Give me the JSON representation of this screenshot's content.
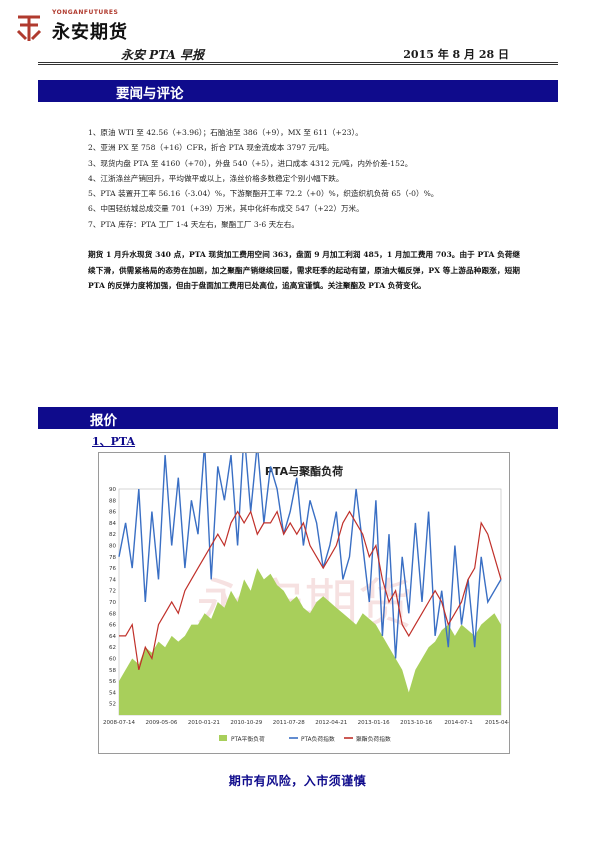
{
  "header": {
    "logo_small": "YONGANFUTURES",
    "logo_main": "永安期货",
    "title": "永安 PTA 早报",
    "date": "2015 年 8 月 28 日"
  },
  "sections": {
    "news_title": "要闻与评论",
    "quote_title": "报价",
    "sub_title": "1、PTA"
  },
  "news": [
    "1、原油 WTI 至 42.56（+3.96）；石脑油至 386（+9），MX 至 611（+23）。",
    "2、亚洲 PX 至 758（+16）CFR，折合 PTA 现金流成本 3797 元/吨。",
    "3、现货内盘 PTA 至 4160（+70），外盘 540（+5），进口成本 4312 元/吨，内外价差-152。",
    "4、江浙涤丝产销回升，平均做平或以上，涤丝价格多数稳定个别小幅下跌。",
    "5、PTA 装置开工率 56.16（-3.04）%，下游聚酯开工率 72.2（+0）%，织造织机负荷 65（-0）%。",
    "6、中国轻纺城总成交量 701（+39）万米，其中化纤布成交 547（+22）万米。",
    "7、PTA 库存：PTA 工厂 1-4 天左右，聚酯工厂 3-6 天左右。"
  ],
  "comment": "期货 1 月升水现货 340 点，PTA 现货加工费用空间 363，盘面 9 月加工利润 485，1 月加工费用 703。由于 PTA 负荷继续下滑，供需紧格局的态势在加剧，加之聚酯产销继续回暖，需求旺季的起动有望，原油大幅反弹，PX 等上游品种跟涨，短期 PTA 的反弹力度将加强，但由于盘面加工费用已处高位，追高宜谨慎。关注聚酯及 PTA 负荷变化。",
  "footer": "期市有风险，入市须谨慎",
  "colors": {
    "brand_blue": "#0f0b8c",
    "series_pta": "#3a6fc4",
    "series_polyester": "#c0302a",
    "area_fill": "#a8cf5b"
  },
  "chart_data": {
    "type": "line",
    "title": "PTA与聚酯负荷",
    "ylim": [
      50,
      90
    ],
    "y_ticks": [
      "90",
      "88",
      "86",
      "84",
      "82",
      "80",
      "78",
      "76",
      "74",
      "72",
      "70",
      "68",
      "66",
      "64",
      "62",
      "60",
      "58",
      "56",
      "54",
      "52"
    ],
    "x_ticks": [
      "2008-07-14",
      "2009-05-06",
      "2010-01-21",
      "2010-10-29",
      "2011-07-28",
      "2012-04-21",
      "2013-01-16",
      "2013-10-16",
      "2014-07-1",
      "2015-04-37"
    ],
    "legend": [
      "PTA平衡负荷",
      "PTA负荷指数",
      "聚酯负荷指数"
    ],
    "series": [
      {
        "name": "PTA负荷指数",
        "kind": "line",
        "values": [
          78,
          84,
          76,
          90,
          70,
          86,
          74,
          96,
          80,
          92,
          76,
          88,
          82,
          98,
          74,
          94,
          88,
          96,
          80,
          100,
          86,
          98,
          84,
          94,
          90,
          82,
          86,
          92,
          80,
          88,
          84,
          76,
          80,
          86,
          74,
          78,
          90,
          80,
          70,
          88,
          64,
          82,
          60,
          78,
          68,
          84,
          70,
          86,
          64,
          72,
          62,
          80,
          66,
          74,
          62,
          78,
          70,
          72,
          74
        ]
      },
      {
        "name": "聚酯负荷指数",
        "kind": "line",
        "values": [
          64,
          64,
          66,
          58,
          62,
          60,
          66,
          68,
          70,
          68,
          72,
          74,
          76,
          78,
          80,
          82,
          80,
          84,
          86,
          84,
          86,
          82,
          84,
          84,
          86,
          82,
          84,
          82,
          84,
          80,
          78,
          76,
          78,
          80,
          84,
          86,
          84,
          82,
          78,
          80,
          74,
          70,
          72,
          66,
          64,
          66,
          68,
          70,
          72,
          70,
          66,
          68,
          70,
          74,
          76,
          84,
          82,
          78,
          74
        ]
      },
      {
        "name": "PTA平衡负荷",
        "kind": "area",
        "values": [
          56,
          58,
          60,
          59,
          62,
          61,
          63,
          62,
          64,
          63,
          64,
          66,
          66,
          68,
          67,
          70,
          69,
          72,
          70,
          74,
          72,
          76,
          74,
          75,
          73,
          72,
          70,
          71,
          69,
          68,
          70,
          71,
          70,
          69,
          68,
          67,
          66,
          68,
          67,
          66,
          64,
          62,
          60,
          58,
          54,
          58,
          60,
          62,
          63,
          65,
          66,
          64,
          66,
          65,
          64,
          66,
          67,
          68,
          66
        ]
      }
    ]
  }
}
